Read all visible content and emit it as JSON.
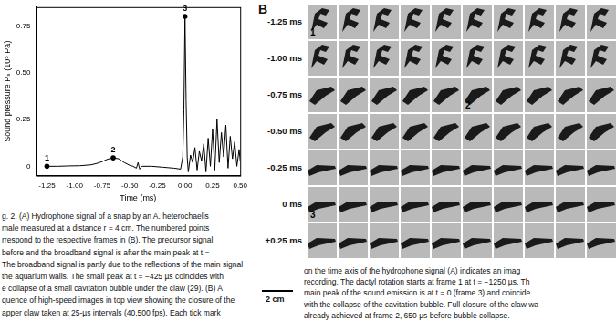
{
  "chart_data": {
    "type": "line",
    "x_label": "Time (ms)",
    "y_label": "Sound pressure Pₛ (10⁵ Pa)",
    "color": "#000000",
    "x": [
      -1.25,
      -1.15,
      -1.05,
      -0.95,
      -0.85,
      -0.8,
      -0.75,
      -0.7,
      -0.65,
      -0.6,
      -0.55,
      -0.5,
      -0.47,
      -0.44,
      -0.425,
      -0.41,
      -0.39,
      -0.3,
      -0.2,
      -0.1,
      -0.04,
      -0.02,
      -0.01,
      0.0,
      0.01,
      0.02,
      0.03,
      0.05,
      0.07,
      0.09,
      0.11,
      0.13,
      0.15,
      0.17,
      0.19,
      0.21,
      0.23,
      0.25,
      0.27,
      0.29,
      0.31,
      0.33,
      0.35,
      0.37,
      0.39,
      0.41,
      0.43,
      0.45,
      0.47,
      0.49,
      0.5
    ],
    "values": [
      0,
      0,
      0.002,
      0.003,
      0.008,
      0.015,
      0.025,
      0.038,
      0.045,
      0.04,
      0.02,
      0.005,
      0.0,
      -0.01,
      0.02,
      -0.015,
      0.0,
      0.0,
      -0.005,
      -0.01,
      -0.015,
      0.05,
      0.3,
      0.8,
      0.35,
      0.05,
      -0.03,
      0.06,
      0.02,
      0.1,
      -0.02,
      0.08,
      0.03,
      0.12,
      -0.03,
      0.15,
      0.0,
      0.2,
      -0.02,
      0.25,
      0.02,
      0.18,
      0.05,
      0.22,
      -0.01,
      0.16,
      0.04,
      0.13,
      0.0,
      0.09,
      0.03
    ],
    "xlim": [
      -1.35,
      0.5
    ],
    "xticks": [
      -1.25,
      {
        "value": -1.0,
        "label": "-1.00"
      },
      -0.75,
      {
        "value": -0.5,
        "label": "-0.50"
      },
      -0.25,
      {
        "value": 0,
        "label": "0.00"
      },
      0.25,
      {
        "value": 0.5,
        "label": "0.50"
      }
    ],
    "ylim": [
      -0.05,
      0.85
    ],
    "yticks": [
      0,
      0.25,
      {
        "value": 0.5,
        "label": "0.50"
      },
      0.75
    ],
    "grid": false,
    "annotations": [
      {
        "x": -1.25,
        "y": 0,
        "label": "1"
      },
      {
        "x": -0.65,
        "y": 0.045,
        "label": "2"
      },
      {
        "x": 0,
        "y": 0.8,
        "label": "3"
      }
    ]
  },
  "panel_b": {
    "label": "B",
    "columns": 10,
    "row_labels": [
      "-1.25 ms",
      "-1.00 ms",
      "-0.75 ms",
      "-0.50 ms",
      "-0.25 ms",
      "0 ms",
      "+0.25 ms"
    ],
    "frame_labels": [
      {
        "row": 0,
        "col": 0,
        "label": "1"
      },
      {
        "row": 2,
        "col": 5,
        "label": "2"
      },
      {
        "row": 5,
        "col": 0,
        "label": "3"
      }
    ],
    "scale_bar": "2 cm"
  },
  "caption_left": [
    "g. 2. (A) Hydrophone signal of a snap by an A. heterochaelis",
    "male measured at a distance r = 4 cm. The numbered points",
    "rrespond to the respective frames in (B). The precursor signal",
    "before and the broadband signal is after the main peak at t =",
    "The broadband signal is partly due to the reflections of the main signal",
    "the aquarium walls. The small peak at t = −425 µs coincides with",
    "e collapse of a small cavitation bubble under the claw (29). (B) A",
    "quence of high-speed images in top view showing the closure of the",
    "apper claw taken at 25-µs intervals (40,500 fps). Each tick mark"
  ],
  "caption_right": [
    "on the time axis of the hydrophone signal (A) indicates an imag",
    "recording. The dactyl rotation starts at frame 1 at t = −1250 µs. Th",
    "main peak of the sound emission is at t = 0 (frame 3) and coincide",
    "with the collapse of the cavitation bubble. Full closure of the claw wa",
    "already achieved at frame 2, 650 µs before bubble collapse."
  ]
}
